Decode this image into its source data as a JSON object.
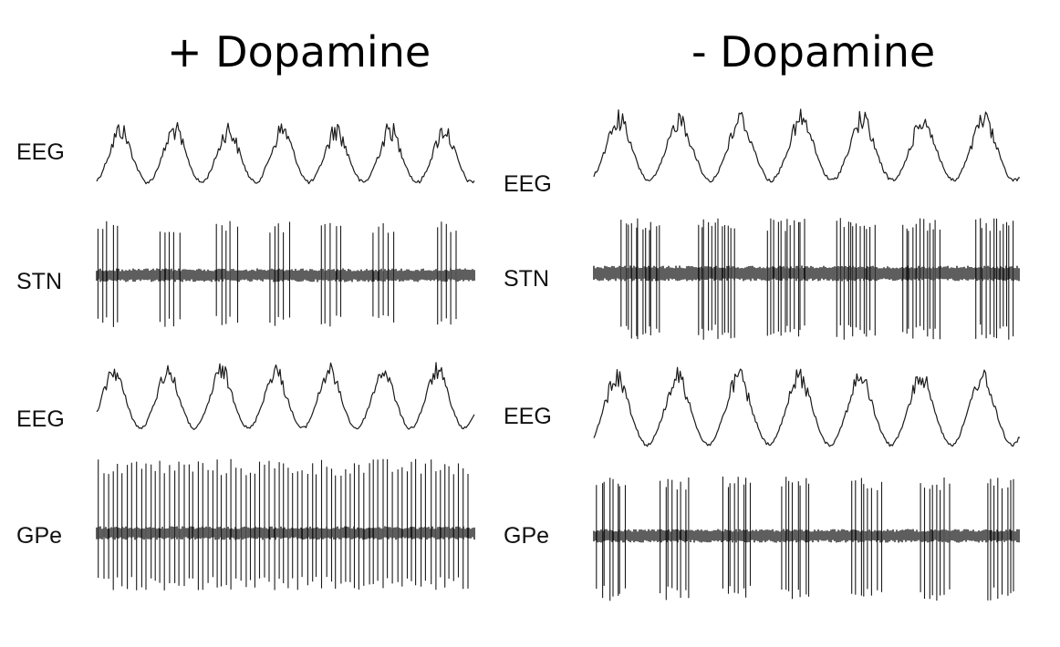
{
  "panels": [
    {
      "title": "+ Dopamine",
      "labels": [
        "EEG",
        "STN",
        "EEG",
        "GPe"
      ]
    },
    {
      "title": "- Dopamine",
      "labels": [
        "EEG",
        "STN",
        "EEG",
        "GPe"
      ]
    }
  ],
  "trace_color": "#1a1a1a"
}
